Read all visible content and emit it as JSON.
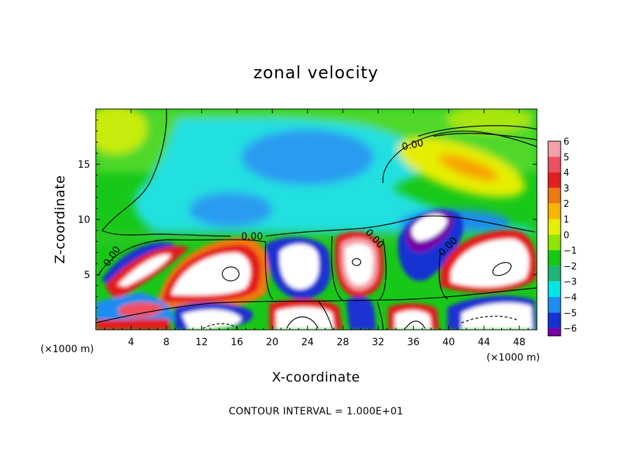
{
  "chart_data": {
    "type": "heatmap",
    "title": "zonal velocity",
    "xlabel": "X-coordinate",
    "ylabel": "Z-coordinate",
    "x_unit": "(×1000 m)",
    "y_unit": "(×1000 m)",
    "xlim": [
      0,
      50
    ],
    "ylim": [
      0,
      20
    ],
    "x_ticks": [
      4,
      8,
      12,
      16,
      20,
      24,
      28,
      32,
      36,
      40,
      44,
      48
    ],
    "x_tick_labels": [
      "4",
      "8",
      "12",
      "16",
      "20",
      "24",
      "28",
      "32",
      "36",
      "40",
      "44",
      "48"
    ],
    "y_ticks": [
      5,
      10,
      15
    ],
    "y_tick_labels": [
      "5",
      "10",
      "15"
    ],
    "colorbar": {
      "levels": [
        6,
        5,
        4,
        3,
        2,
        1,
        0,
        -1,
        -2,
        -3,
        -4,
        -5,
        -6
      ],
      "labels": [
        "6",
        "5",
        "4",
        "3",
        "2",
        "1",
        "0",
        "−1",
        "−2",
        "−3",
        "−4",
        "−5",
        "−6"
      ],
      "colors": [
        "#f4a0a8",
        "#ef5060",
        "#e41e1e",
        "#f07810",
        "#fab400",
        "#e6ee00",
        "#8ce600",
        "#14c814",
        "#1eb478",
        "#00e6e6",
        "#1e8cf0",
        "#1432d2",
        "#7800aa"
      ]
    },
    "contour_labels": [
      "0.00",
      "0.00",
      "0.00",
      "0.00",
      "0.00"
    ],
    "contour_interval_text": "CONTOUR INTERVAL = 1.000E+01"
  }
}
